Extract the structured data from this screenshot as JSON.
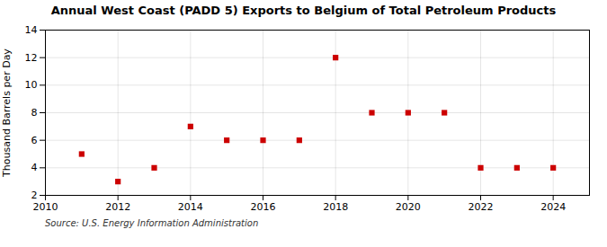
{
  "chart_data": {
    "type": "scatter",
    "title": "Annual West Coast (PADD 5) Exports to Belgium of Total Petroleum Products",
    "ylabel": "Thousand Barrels per Day",
    "source": "Source: U.S. Energy Information Administration",
    "x": [
      2011,
      2012,
      2013,
      2014,
      2015,
      2016,
      2017,
      2018,
      2019,
      2020,
      2021,
      2022,
      2023,
      2024
    ],
    "values": [
      5,
      3,
      4,
      7,
      6,
      6,
      6,
      12,
      8,
      8,
      8,
      4,
      4,
      4
    ],
    "color": "#cc0000",
    "marker": "square",
    "xlim": [
      2010,
      2025
    ],
    "xticks": [
      2010,
      2012,
      2014,
      2016,
      2018,
      2020,
      2022,
      2024
    ],
    "ylim": [
      2,
      14
    ],
    "yticks": [
      2,
      4,
      6,
      8,
      10,
      12,
      14
    ],
    "grid": true
  }
}
